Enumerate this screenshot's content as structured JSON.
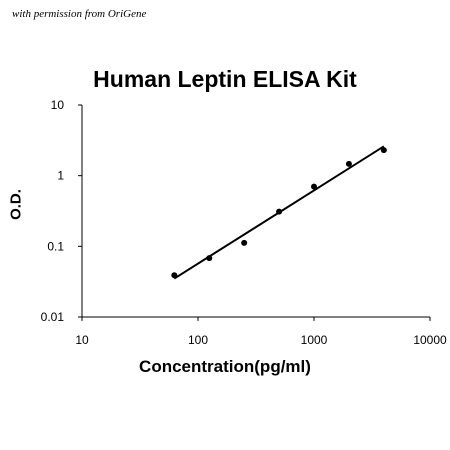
{
  "watermark": "with permission from OriGene",
  "chart_data": {
    "type": "scatter",
    "title": "Human Leptin ELISA Kit",
    "xlabel": "Concentration(pg/ml)",
    "ylabel": "O.D.",
    "xscale": "log",
    "yscale": "log",
    "xlim": [
      10,
      10000
    ],
    "ylim": [
      0.01,
      10
    ],
    "x_ticks": [
      "10",
      "100",
      "1000",
      "10000"
    ],
    "y_ticks": [
      "10",
      "1",
      "0.1",
      "0.01"
    ],
    "grid": false,
    "legend": "none",
    "points": [
      {
        "x": 62.5,
        "y": 0.039
      },
      {
        "x": 125,
        "y": 0.068
      },
      {
        "x": 250,
        "y": 0.112
      },
      {
        "x": 500,
        "y": 0.31
      },
      {
        "x": 1000,
        "y": 0.7
      },
      {
        "x": 2000,
        "y": 1.47
      },
      {
        "x": 4000,
        "y": 2.3
      }
    ],
    "fit_line": {
      "x": [
        62.5,
        4000
      ],
      "y": [
        0.035,
        2.6
      ]
    }
  }
}
